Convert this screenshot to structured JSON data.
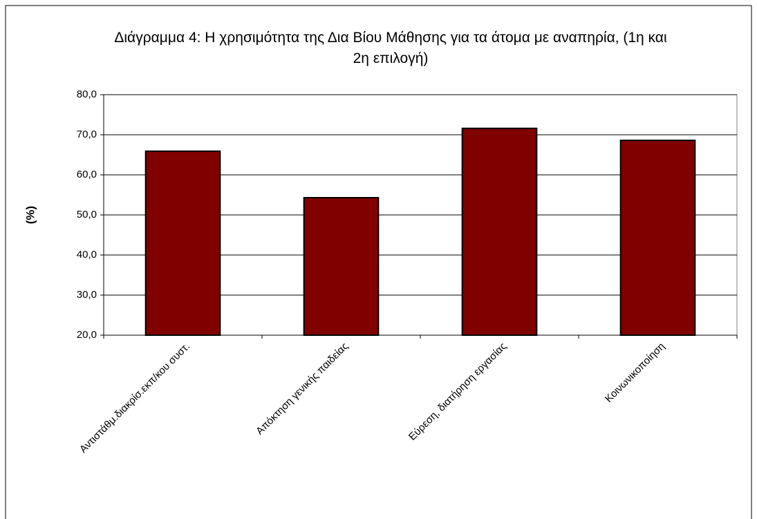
{
  "chart_data": {
    "type": "bar",
    "title": "Διάγραμμα 4: Η χρησιμότητα της Δια Βίου Μάθησης για τα άτομα με αναπηρία, (1η και 2η επιλογή)",
    "y_label": "(%)",
    "categories": [
      "Αντιστάθμ.διακρίσ.εκπ/κου συστ.",
      "Απόκτηση γενικής παιδείας",
      "Εύρεση, διατήρηση εργασίας",
      "Κοινωνικοποίηση"
    ],
    "values": [
      65.9,
      54.3,
      71.6,
      68.6
    ],
    "color": "#800000",
    "ylim": [
      20,
      80
    ],
    "yticks": [
      {
        "value": 20,
        "label": "20,0"
      },
      {
        "value": 30,
        "label": "30,0"
      },
      {
        "value": 40,
        "label": "40,0"
      },
      {
        "value": 50,
        "label": "50,0"
      },
      {
        "value": 60,
        "label": "60,0"
      },
      {
        "value": 70,
        "label": "70,0"
      },
      {
        "value": 80,
        "label": "80,0"
      }
    ],
    "grid": true
  }
}
